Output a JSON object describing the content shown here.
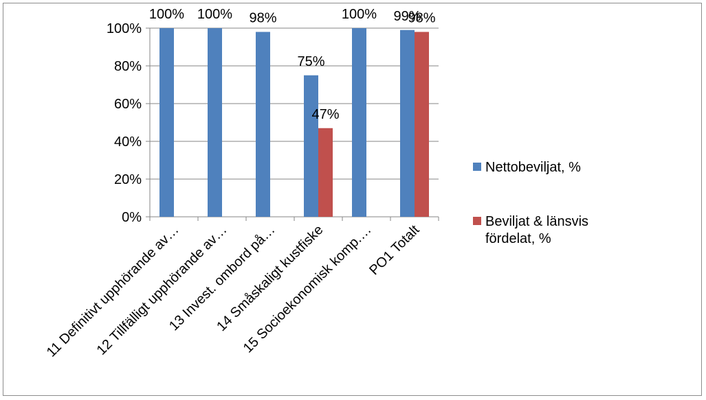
{
  "chart_data": {
    "type": "bar",
    "title": "",
    "xlabel": "",
    "ylabel": "",
    "ylim": [
      0,
      100
    ],
    "yticks": [
      "0%",
      "20%",
      "40%",
      "60%",
      "80%",
      "100%"
    ],
    "grid": true,
    "legend_position": "right",
    "categories": [
      "11 Definitivt upphörande av…",
      "12 Tillfälligt upphörande av…",
      "13 Invest. ombord på…",
      "14 Småskaligt kustfiske",
      "15 Socioekonomisk komp.…",
      "PO1 Totalt"
    ],
    "series": [
      {
        "name": "Nettobeviljat, %",
        "color": "#4f81bd",
        "values": [
          100,
          100,
          98,
          75,
          100,
          99
        ],
        "labels": [
          "100%",
          "100%",
          "98%",
          "75%",
          "100%",
          "99%"
        ]
      },
      {
        "name": "Beviljat & länsvis fördelat, %",
        "color": "#c0504d",
        "values": [
          null,
          null,
          null,
          47,
          null,
          98
        ],
        "labels": [
          null,
          null,
          null,
          "47%",
          null,
          "98%"
        ]
      }
    ]
  }
}
